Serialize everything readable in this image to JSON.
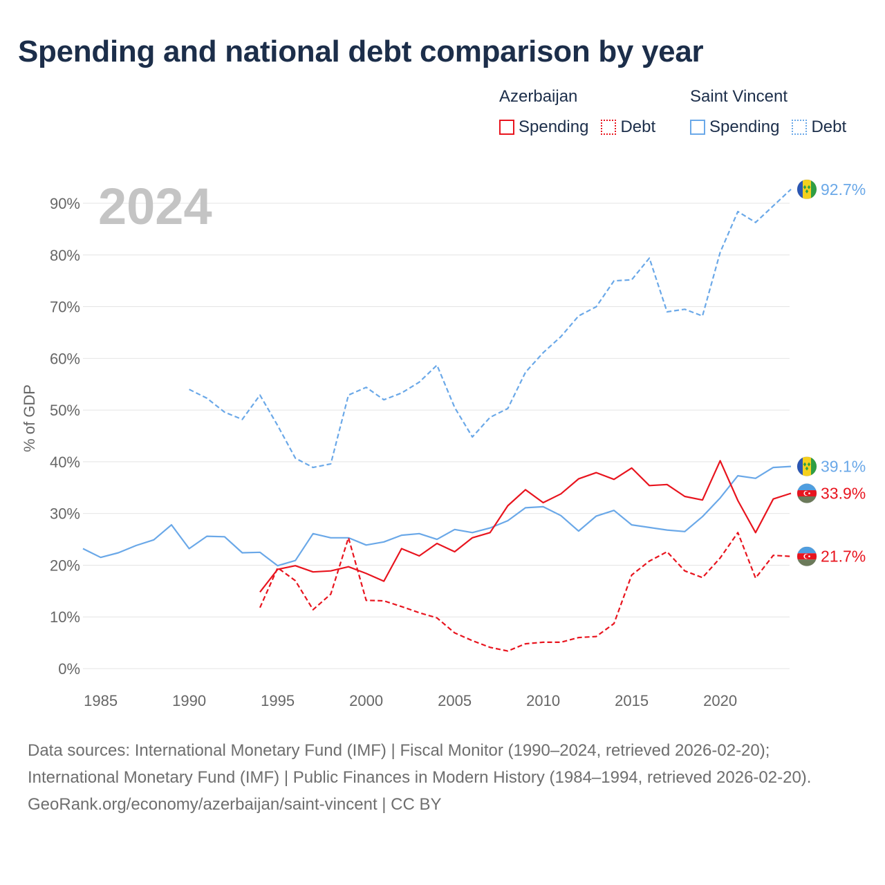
{
  "title": "Spending and national debt comparison by year",
  "legend": {
    "groups": [
      {
        "country": "Azerbaijan",
        "spending_label": "Spending",
        "debt_label": "Debt"
      },
      {
        "country": "Saint Vincent",
        "spending_label": "Spending",
        "debt_label": "Debt"
      }
    ]
  },
  "colors": {
    "azerbaijan": "#e8141e",
    "saint_vincent": "#6aa8e8",
    "year_watermark": "#c4c4c4"
  },
  "chart_data": {
    "type": "line",
    "title": "Spending and national debt comparison by year",
    "xlabel": "",
    "ylabel": "% of GDP",
    "year_label": "2024",
    "xlim": [
      1984,
      2024
    ],
    "ylim": [
      0,
      95
    ],
    "x_ticks": [
      1985,
      1990,
      1995,
      2000,
      2005,
      2010,
      2015,
      2020
    ],
    "y_ticks": [
      0,
      10,
      20,
      30,
      40,
      50,
      60,
      70,
      80,
      90
    ],
    "y_tick_labels": [
      "0%",
      "10%",
      "20%",
      "30%",
      "40%",
      "50%",
      "60%",
      "70%",
      "80%",
      "90%"
    ],
    "series": [
      {
        "name": "Saint Vincent Debt",
        "country": "Saint Vincent",
        "measure": "Debt",
        "style": "dashed",
        "color": "#6aa8e8",
        "end_label": "92.7%",
        "flag": "saint-vincent-flag-icon",
        "x": [
          1990,
          1991,
          1992,
          1993,
          1994,
          1995,
          1996,
          1997,
          1998,
          1999,
          2000,
          2001,
          2002,
          2003,
          2004,
          2005,
          2006,
          2007,
          2008,
          2009,
          2010,
          2011,
          2012,
          2013,
          2014,
          2015,
          2016,
          2017,
          2018,
          2019,
          2020,
          2021,
          2022,
          2023,
          2024
        ],
        "y": [
          54.0,
          52.3,
          49.6,
          48.2,
          52.9,
          47.0,
          40.7,
          38.9,
          39.6,
          52.9,
          54.4,
          52.0,
          53.3,
          55.4,
          58.7,
          50.5,
          44.8,
          48.6,
          50.3,
          57.3,
          61.1,
          64.2,
          68.2,
          70.0,
          75.0,
          75.2,
          79.4,
          69.0,
          69.5,
          68.2,
          80.5,
          88.4,
          86.3,
          89.5,
          92.7
        ]
      },
      {
        "name": "Saint Vincent Spending",
        "country": "Saint Vincent",
        "measure": "Spending",
        "style": "solid",
        "color": "#6aa8e8",
        "end_label": "39.1%",
        "flag": "saint-vincent-flag-icon",
        "x": [
          1984,
          1985,
          1986,
          1987,
          1988,
          1989,
          1990,
          1991,
          1992,
          1993,
          1994,
          1995,
          1996,
          1997,
          1998,
          1999,
          2000,
          2001,
          2002,
          2003,
          2004,
          2005,
          2006,
          2007,
          2008,
          2009,
          2010,
          2011,
          2012,
          2013,
          2014,
          2015,
          2016,
          2017,
          2018,
          2019,
          2020,
          2021,
          2022,
          2023,
          2024
        ],
        "y": [
          23.2,
          21.5,
          22.4,
          23.8,
          24.9,
          27.8,
          23.2,
          25.6,
          25.5,
          22.4,
          22.5,
          19.9,
          20.9,
          26.1,
          25.3,
          25.3,
          23.9,
          24.5,
          25.8,
          26.1,
          25.0,
          26.9,
          26.3,
          27.2,
          28.6,
          31.1,
          31.3,
          29.6,
          26.6,
          29.5,
          30.6,
          27.8,
          27.3,
          26.8,
          26.5,
          29.4,
          33.0,
          37.3,
          36.8,
          38.9,
          39.1
        ]
      },
      {
        "name": "Azerbaijan Spending",
        "country": "Azerbaijan",
        "measure": "Spending",
        "style": "solid",
        "color": "#e8141e",
        "end_label": "33.9%",
        "flag": "azerbaijan-flag-icon",
        "x": [
          1994,
          1995,
          1996,
          1997,
          1998,
          1999,
          2000,
          2001,
          2002,
          2003,
          2004,
          2005,
          2006,
          2007,
          2008,
          2009,
          2010,
          2011,
          2012,
          2013,
          2014,
          2015,
          2016,
          2017,
          2018,
          2019,
          2020,
          2021,
          2022,
          2023,
          2024
        ],
        "y": [
          14.8,
          19.2,
          19.9,
          18.7,
          18.9,
          19.7,
          18.4,
          16.9,
          23.2,
          21.8,
          24.2,
          22.6,
          25.3,
          26.3,
          31.5,
          34.6,
          32.1,
          33.8,
          36.7,
          37.9,
          36.6,
          38.8,
          35.4,
          35.6,
          33.3,
          32.6,
          40.2,
          32.5,
          26.3,
          32.8,
          33.9
        ]
      },
      {
        "name": "Azerbaijan Debt",
        "country": "Azerbaijan",
        "measure": "Debt",
        "style": "dashed",
        "color": "#e8141e",
        "end_label": "21.7%",
        "flag": "azerbaijan-flag-icon",
        "x": [
          1994,
          1995,
          1996,
          1997,
          1998,
          1999,
          2000,
          2001,
          2002,
          2003,
          2004,
          2005,
          2006,
          2007,
          2008,
          2009,
          2010,
          2011,
          2012,
          2013,
          2014,
          2015,
          2016,
          2017,
          2018,
          2019,
          2020,
          2021,
          2022,
          2023,
          2024
        ],
        "y": [
          11.8,
          19.5,
          17.0,
          11.4,
          14.4,
          25.3,
          13.2,
          13.1,
          12.0,
          10.8,
          9.8,
          6.9,
          5.4,
          4.1,
          3.4,
          4.8,
          5.1,
          5.1,
          6.0,
          6.2,
          8.7,
          18.1,
          20.8,
          22.6,
          18.9,
          17.6,
          21.4,
          26.3,
          17.5,
          21.9,
          21.7
        ]
      }
    ]
  },
  "footer": {
    "sources": "Data sources: International Monetary Fund (IMF) | Fiscal Monitor (1990–2024, retrieved 2026-02-20); International Monetary Fund (IMF) | Public Finances in Modern History (1984–1994, retrieved 2026-02-20).",
    "credit": "GeoRank.org/economy/azerbaijan/saint-vincent | CC BY"
  }
}
